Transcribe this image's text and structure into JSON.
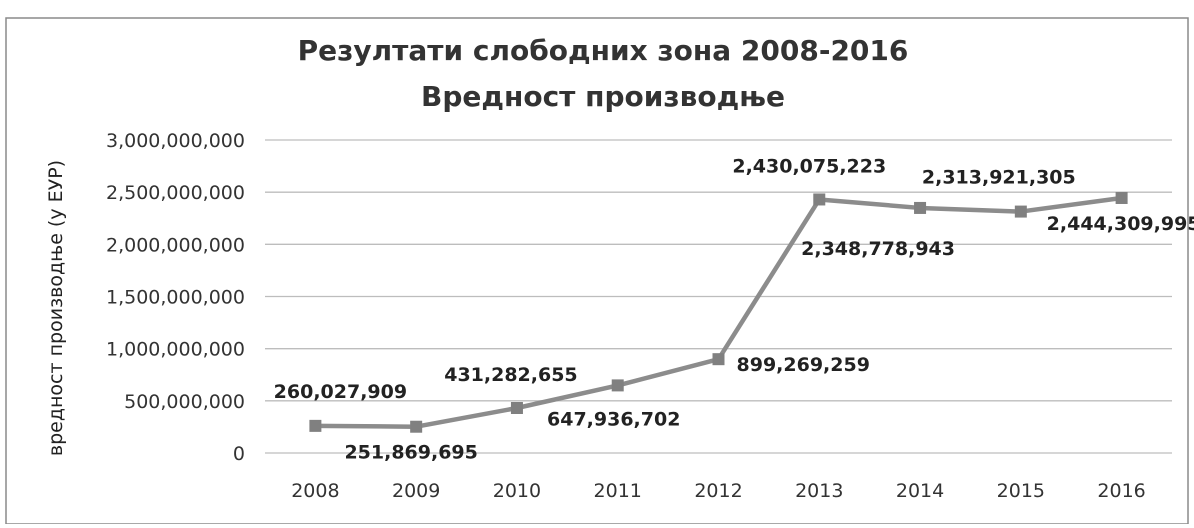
{
  "chart_data": {
    "type": "line",
    "title": "Резултати слободних зона 2008-2016",
    "subtitle": "Вредност производње",
    "xlabel": "",
    "ylabel": "вредност производње (у ЕУР)",
    "categories": [
      "2008",
      "2009",
      "2010",
      "2011",
      "2012",
      "2013",
      "2014",
      "2015",
      "2016"
    ],
    "series": [
      {
        "values": [
          260027909,
          251869695,
          431282655,
          647936702,
          899269259,
          2430075223,
          2348778943,
          2313921305,
          2444309995
        ]
      }
    ],
    "data_labels": [
      "260,027,909",
      "251,869,695",
      "431,282,655",
      "647,936,702",
      "899,269,259",
      "2,430,075,223",
      "2,348,778,943",
      "2,313,921,305",
      "2,444,309,995"
    ],
    "y_ticks": [
      "0",
      "500,000,000",
      "1,000,000,000",
      "1,500,000,000",
      "2,000,000,000",
      "2,500,000,000",
      "3,000,000,000"
    ],
    "ylim": [
      0,
      3000000000
    ],
    "grid": true,
    "legend": "none",
    "line_color": "#8c8c8c",
    "marker": "square"
  }
}
